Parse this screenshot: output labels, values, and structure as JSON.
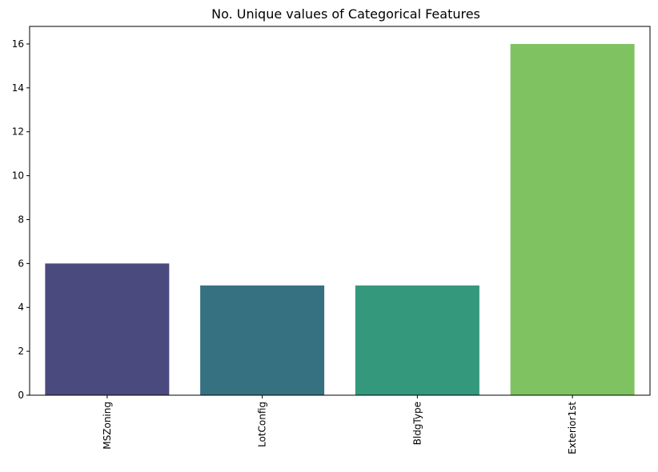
{
  "chart_data": {
    "type": "bar",
    "title": "No. Unique values of Categorical Features",
    "xlabel": "",
    "ylabel": "",
    "categories": [
      "MSZoning",
      "LotConfig",
      "BldgType",
      "Exterior1st"
    ],
    "values": [
      6,
      5,
      5,
      16
    ],
    "bar_colors": [
      "#4a4a7e",
      "#357180",
      "#34987c",
      "#7fc262"
    ],
    "ylim": [
      0,
      16.8
    ],
    "yticks": [
      0,
      2,
      4,
      6,
      8,
      10,
      12,
      14,
      16
    ],
    "grid": false,
    "x_tick_rotation": "vertical"
  }
}
